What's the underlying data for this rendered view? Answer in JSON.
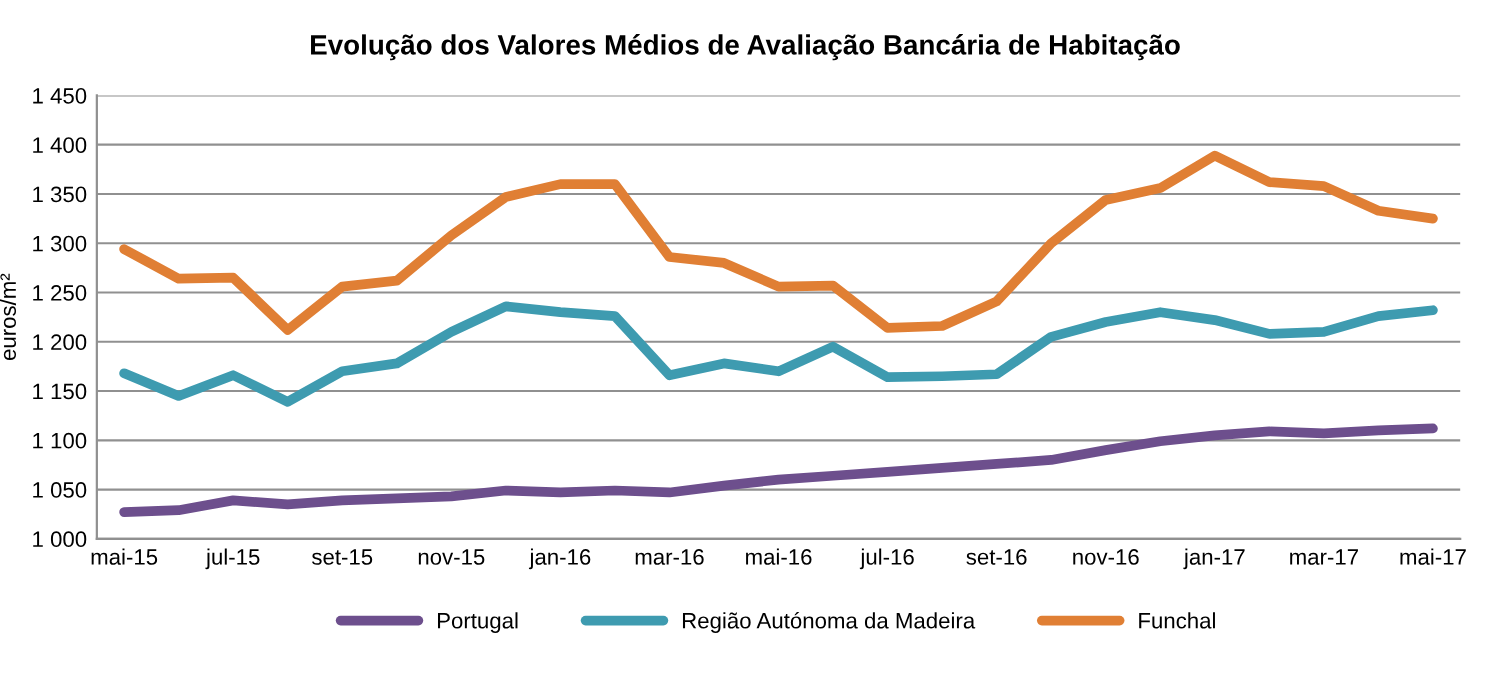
{
  "chart_data": {
    "type": "line",
    "title": "Evolução dos Valores Médios de Avaliação Bancária de Habitação",
    "ylabel": "euros/m²",
    "categories": [
      "mai-15",
      null,
      "jul-15",
      null,
      "set-15",
      null,
      "nov-15",
      null,
      "jan-16",
      null,
      "mar-16",
      null,
      "mai-16",
      null,
      "jul-16",
      null,
      "set-16",
      null,
      "nov-16",
      null,
      "jan-17",
      null,
      "mar-17",
      null,
      "mai-17"
    ],
    "series": [
      {
        "name": "Portugal",
        "color": "#6d4f8d",
        "values": [
          1027,
          1029,
          1039,
          1035,
          1039,
          1041,
          1043,
          1049,
          1047,
          1049,
          1047,
          1054,
          1060,
          1064,
          1068,
          1072,
          1076,
          1080,
          1090,
          1099,
          1105,
          1109,
          1107,
          1110,
          1112
        ]
      },
      {
        "name": "Região Autónoma da Madeira",
        "color": "#3e9bb0",
        "values": [
          1168,
          1145,
          1166,
          1139,
          1170,
          1178,
          1210,
          1236,
          1230,
          1226,
          1166,
          1178,
          1170,
          1195,
          1164,
          1165,
          1167,
          1205,
          1220,
          1230,
          1222,
          1208,
          1210,
          1226,
          1232
        ]
      },
      {
        "name": "Funchal",
        "color": "#e07f34",
        "values": [
          1294,
          1264,
          1265,
          1212,
          1256,
          1262,
          1308,
          1347,
          1360,
          1360,
          1286,
          1280,
          1256,
          1257,
          1214,
          1216,
          1241,
          1300,
          1344,
          1356,
          1389,
          1362,
          1358,
          1333,
          1325
        ]
      }
    ],
    "ylim": [
      1000,
      1450
    ],
    "yticks": [
      {
        "value": 1000,
        "label": "1 000"
      },
      {
        "value": 1050,
        "label": "1 050"
      },
      {
        "value": 1100,
        "label": "1 100"
      },
      {
        "value": 1150,
        "label": "1 150"
      },
      {
        "value": 1200,
        "label": "1 200"
      },
      {
        "value": 1250,
        "label": "1 250"
      },
      {
        "value": 1300,
        "label": "1 300"
      },
      {
        "value": 1350,
        "label": "1 350"
      },
      {
        "value": 1400,
        "label": "1 400"
      },
      {
        "value": 1450,
        "label": "1 450"
      }
    ],
    "grid": "y",
    "legend": "bottom",
    "marker": "none",
    "line_style": "solid"
  }
}
